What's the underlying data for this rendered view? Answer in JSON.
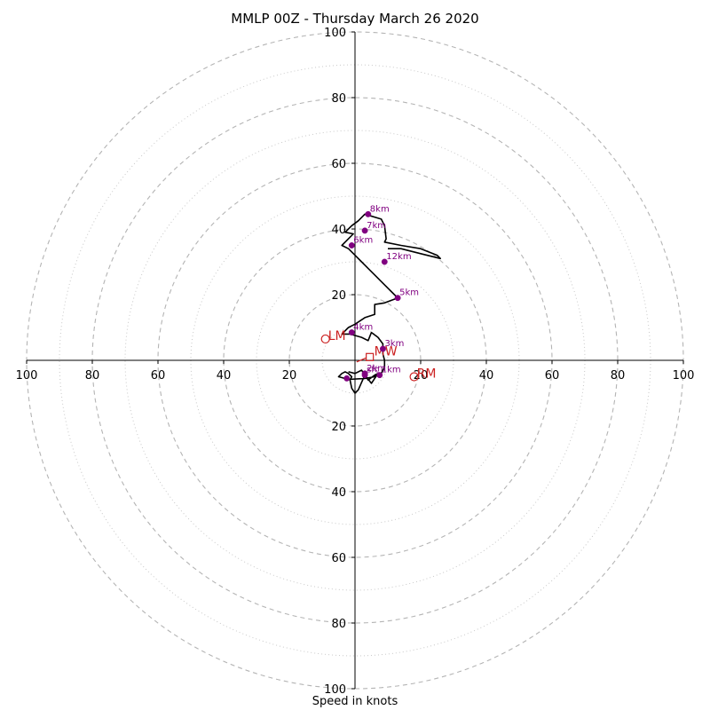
{
  "chart_data": {
    "type": "hodograph",
    "title": "MMLP 00Z - Thursday March 26 2020",
    "xlabel": "Speed in knots",
    "radial_range": [
      0,
      100
    ],
    "ring_major": [
      20,
      40,
      60,
      80,
      100
    ],
    "ring_minor": [
      10,
      30,
      50,
      70,
      90
    ],
    "tick_labels": [
      "20",
      "40",
      "60",
      "80",
      "100"
    ],
    "grid": true,
    "hodograph_color": "#000000",
    "height_marker_color": "#800080",
    "motion_color": "#cc2222",
    "hodograph_uv": [
      [
        -2,
        -3.5
      ],
      [
        0,
        -4
      ],
      [
        2,
        -3
      ],
      [
        3,
        -4.5
      ],
      [
        4,
        -6
      ],
      [
        6,
        -4.5
      ],
      [
        7,
        -4
      ],
      [
        5,
        -7
      ],
      [
        3,
        -4.5
      ],
      [
        1,
        -9
      ],
      [
        0,
        -10
      ],
      [
        -1,
        -8.5
      ],
      [
        -1.5,
        -6
      ],
      [
        -1,
        -5
      ],
      [
        -2,
        -4
      ],
      [
        -3,
        -3.5
      ],
      [
        -4,
        -4
      ],
      [
        -5,
        -5
      ],
      [
        -2,
        -5.8
      ],
      [
        3,
        -5.5
      ],
      [
        6,
        -5
      ],
      [
        8,
        -4
      ],
      [
        9,
        -2
      ],
      [
        9,
        0
      ],
      [
        8.5,
        2
      ],
      [
        8.5,
        5
      ],
      [
        7,
        7
      ],
      [
        5,
        8.5
      ],
      [
        4,
        6
      ],
      [
        2,
        7
      ],
      [
        -1.5,
        8
      ],
      [
        -4,
        8
      ],
      [
        -2,
        10
      ],
      [
        0,
        11
      ],
      [
        3,
        13
      ],
      [
        6,
        14
      ],
      [
        6,
        16
      ],
      [
        6,
        17
      ],
      [
        9,
        17.5
      ],
      [
        13,
        19
      ],
      [
        12,
        20
      ],
      [
        9,
        23
      ],
      [
        6,
        26
      ],
      [
        4,
        28
      ],
      [
        2,
        30
      ],
      [
        0,
        32
      ],
      [
        -2,
        34
      ],
      [
        -4,
        35
      ],
      [
        -2,
        37
      ],
      [
        -0.5,
        38.5
      ],
      [
        -3,
        39
      ],
      [
        -1,
        41
      ],
      [
        1,
        42.5
      ],
      [
        3,
        44.5
      ],
      [
        8,
        43
      ],
      [
        9,
        41
      ],
      [
        9.5,
        37
      ],
      [
        9,
        36
      ],
      [
        14,
        35
      ],
      [
        20,
        34
      ],
      [
        25,
        32
      ],
      [
        26,
        31
      ],
      [
        20,
        32.5
      ],
      [
        14,
        34
      ],
      [
        10,
        34
      ]
    ],
    "height_markers": [
      {
        "label": "1km",
        "u": 7.5,
        "v": -4.5
      },
      {
        "label": "2km",
        "u": 3,
        "v": -4
      },
      {
        "label": "sfc",
        "u": 3,
        "v": -4.5
      },
      {
        "label": "",
        "u": -2.5,
        "v": -5.5
      },
      {
        "label": "3km",
        "u": 8.5,
        "v": 3.5
      },
      {
        "label": "4km",
        "u": -1,
        "v": 8.5
      },
      {
        "label": "5km",
        "u": 13,
        "v": 19
      },
      {
        "label": "6km",
        "u": -1,
        "v": 35
      },
      {
        "label": "7km",
        "u": 3,
        "v": 39.5
      },
      {
        "label": "8km",
        "u": 4,
        "v": 44.5
      },
      {
        "label": "12km",
        "u": 9,
        "v": 30
      }
    ],
    "motion_markers": [
      {
        "label": "LM",
        "u": -9,
        "v": 6.5,
        "shape": "circle"
      },
      {
        "label": "RM",
        "u": 18,
        "v": -5,
        "shape": "circle"
      },
      {
        "label": "MW",
        "u": 4.5,
        "v": 1,
        "shape": "square"
      }
    ],
    "shear_vector_uv": [
      [
        0.5,
        -0.5
      ],
      [
        3.5,
        0.8
      ]
    ]
  }
}
